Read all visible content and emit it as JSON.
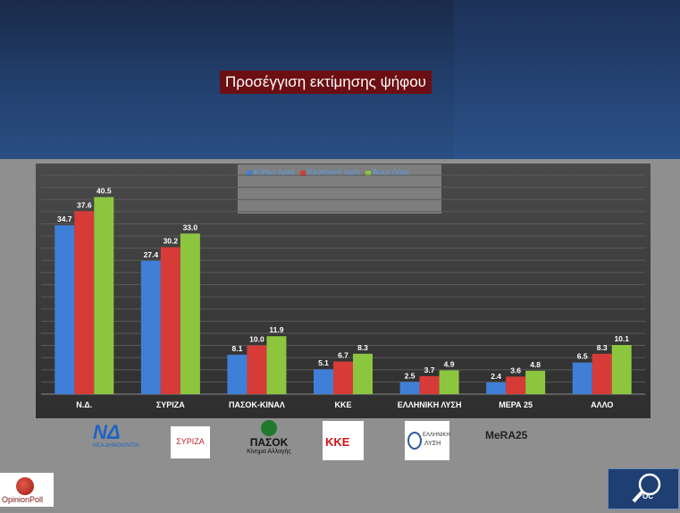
{
  "title": "Προσέγγιση εκτίμησης ψήφου",
  "colors": {
    "low": "#3f7fd8",
    "mid": "#d73b37",
    "high": "#8cc63f"
  },
  "chart_data": {
    "type": "bar",
    "categories": [
      "Ν.Δ.",
      "ΣΥΡΙΖΑ",
      "ΠΑΣΟΚ-ΚΙΝΑΛ",
      "ΚΚΕ",
      "ΕΛΛΗΝΙΚΗ ΛΥΣΗ",
      "ΜΕΡΑ 25",
      "ΑΛΛΟ"
    ],
    "series": [
      {
        "name": "Κάτω όριο",
        "values": [
          34.7,
          27.4,
          8.1,
          5.1,
          2.5,
          2.4,
          6.5
        ]
      },
      {
        "name": "Κεντρική τιμή",
        "values": [
          37.6,
          30.2,
          10.0,
          6.7,
          3.7,
          3.6,
          8.3
        ]
      },
      {
        "name": "Άνω όριο",
        "values": [
          40.5,
          33.0,
          11.9,
          8.3,
          4.9,
          4.8,
          10.1
        ]
      }
    ],
    "value_labels": [
      [
        "34.7",
        "27.4",
        "8.1",
        "5.1",
        "2.5",
        "2.4",
        "6.5"
      ],
      [
        "37.6",
        "30.2",
        "10.0",
        "6.7",
        "3.7",
        "3.6",
        "8.3"
      ],
      [
        "40.5",
        "33.0",
        "11.9",
        "8.3",
        "4.9",
        "4.8",
        "10.1"
      ]
    ],
    "ylim": [
      0,
      45
    ],
    "grid": true,
    "legend": "top-center"
  },
  "logos": {
    "nd": "ΝΔ",
    "nd_sub": "ΝΕΑ ΔΗΜΟΚΡΑΤΙΑ",
    "syriza": "ΣΥΡΙΖΑ",
    "pasok": "ΠΑΣΟΚ",
    "pasok_sub": "Κίνημα Αλλαγής",
    "kke": "ΚΚΕ",
    "elliniki_1": "ΕΛΛΗΝΙΚΗ",
    "elliniki_2": "ΛΥΣΗ",
    "mera": "MeRA25"
  },
  "brand": {
    "opinion_poll": "OpinionPoll",
    "oc": "OC"
  }
}
